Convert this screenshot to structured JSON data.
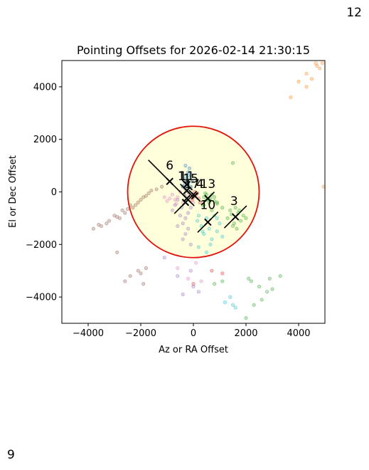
{
  "corner_labels": {
    "top_right": "12",
    "bottom_left": "9"
  },
  "chart_data": {
    "type": "scatter",
    "title": "Pointing Offsets for 2026-02-14 21:30:15",
    "xlabel": "Az or RA Offset",
    "ylabel": "El or Dec Offset",
    "xlim": [
      -5000,
      5000
    ],
    "ylim": [
      -5000,
      5000
    ],
    "xticks": [
      -4000,
      -2000,
      0,
      2000,
      4000
    ],
    "yticks": [
      -4000,
      -2000,
      0,
      2000,
      4000
    ],
    "xtick_labels": [
      "−4000",
      "−2000",
      "0",
      "2000",
      "4000"
    ],
    "ytick_labels": [
      "−4000",
      "−2000",
      "0",
      "2000",
      "4000"
    ],
    "grid": false,
    "background_color": "#ffffff",
    "tolerance_circle": {
      "center": [
        0,
        0
      ],
      "radius": 2500,
      "fill": "#ffffdc",
      "edge": "#e3120b"
    },
    "series": [
      {
        "label": "1",
        "color": "#1f77b4",
        "marker": {
          "x": -250,
          "y": 280,
          "arm": 300,
          "angle": -45
        },
        "text_pos": [
          -450,
          450
        ],
        "points": [
          [
            -300,
            500
          ],
          [
            -200,
            300
          ],
          [
            -100,
            650
          ],
          [
            -350,
            250
          ],
          [
            -150,
            900
          ],
          [
            -400,
            600
          ],
          [
            -250,
            150
          ],
          [
            -50,
            400
          ],
          [
            -200,
            750
          ],
          [
            -350,
            400
          ],
          [
            -100,
            200
          ],
          [
            -300,
            1000
          ],
          [
            -150,
            550
          ],
          [
            -400,
            200
          ],
          [
            -250,
            650
          ]
        ]
      },
      {
        "label": "3",
        "color": "#2ca02c",
        "marker": {
          "x": 1600,
          "y": -950,
          "arm": 600,
          "angle": 45
        },
        "text_pos": [
          1550,
          -500
        ],
        "points": [
          [
            1400,
            -700
          ],
          [
            1800,
            -1100
          ],
          [
            1500,
            -1300
          ],
          [
            1700,
            -800
          ],
          [
            1600,
            -600
          ],
          [
            1900,
            -900
          ],
          [
            1300,
            -1000
          ],
          [
            1550,
            -1200
          ],
          [
            1750,
            -700
          ],
          [
            1450,
            -850
          ],
          [
            2000,
            -1000
          ],
          [
            1650,
            -1400
          ],
          [
            600,
            -300
          ],
          [
            800,
            -200
          ],
          [
            400,
            -500
          ],
          [
            700,
            -700
          ],
          [
            500,
            -100
          ],
          [
            900,
            -400
          ],
          [
            1100,
            -600
          ],
          [
            2100,
            -3300
          ],
          [
            2200,
            -3400
          ],
          [
            2500,
            -3600
          ],
          [
            2800,
            -3800
          ],
          [
            3000,
            -3700
          ],
          [
            3300,
            -3200
          ],
          [
            2600,
            -4100
          ],
          [
            2300,
            -4300
          ],
          [
            2900,
            -3300
          ],
          [
            1100,
            -3400
          ],
          [
            800,
            -3500
          ],
          [
            2000,
            -4800
          ]
        ]
      },
      {
        "label": "4",
        "color": "#d62728",
        "marker": {
          "x": 50,
          "y": -150,
          "arm": 300,
          "angle": -45
        },
        "text_pos": [
          250,
          150
        ],
        "points": [
          [
            0,
            -200
          ],
          [
            100,
            -100
          ],
          [
            -50,
            -300
          ],
          [
            200,
            -250
          ],
          [
            150,
            -50
          ],
          [
            -100,
            -150
          ],
          [
            250,
            -400
          ],
          [
            50,
            0
          ],
          [
            0,
            -3500
          ],
          [
            700,
            -3000
          ],
          [
            1100,
            -3100
          ]
        ]
      },
      {
        "label": "6",
        "color": "#8c564b",
        "marker": {
          "x": -900,
          "y": 400,
          "arm": 1150,
          "angle": -45
        },
        "text_pos": [
          -900,
          850
        ],
        "points": [
          [
            -1600,
            50
          ],
          [
            -1800,
            -150
          ],
          [
            -2100,
            -400
          ],
          [
            -2300,
            -600
          ],
          [
            -2600,
            -800
          ],
          [
            -2800,
            -1000
          ],
          [
            -3200,
            -1100
          ],
          [
            -3500,
            -1300
          ],
          [
            -3800,
            -1400
          ],
          [
            -3000,
            -900
          ],
          [
            -2400,
            -500
          ],
          [
            -1900,
            -200
          ],
          [
            -1400,
            100
          ],
          [
            -1200,
            200
          ],
          [
            -2700,
            -700
          ],
          [
            -2500,
            -650
          ],
          [
            -3300,
            -1200
          ],
          [
            -2000,
            -300
          ],
          [
            -2200,
            -500
          ],
          [
            -1700,
            -50
          ],
          [
            -2900,
            -950
          ],
          [
            -3600,
            -1250
          ],
          [
            -2100,
            -3000
          ],
          [
            -1800,
            -2900
          ],
          [
            -2400,
            -3200
          ],
          [
            -2600,
            -3400
          ],
          [
            -2000,
            -3100
          ],
          [
            -2900,
            -2300
          ],
          [
            -1900,
            -3500
          ]
        ]
      },
      {
        "label": "10",
        "color": "#17becf",
        "marker": {
          "x": 550,
          "y": -1150,
          "arm": 550,
          "angle": 45
        },
        "text_pos": [
          550,
          -650
        ],
        "points": [
          [
            200,
            -900
          ],
          [
            600,
            -1400
          ],
          [
            900,
            -1500
          ],
          [
            300,
            -1300
          ],
          [
            700,
            -1800
          ],
          [
            500,
            -1000
          ],
          [
            1000,
            -1200
          ],
          [
            400,
            -1600
          ],
          [
            800,
            -900
          ],
          [
            150,
            -1100
          ],
          [
            650,
            -2000
          ],
          [
            350,
            -1500
          ],
          [
            1100,
            -1700
          ],
          [
            900,
            -1000
          ],
          [
            500,
            -2300
          ],
          [
            200,
            -2100
          ],
          [
            1400,
            -4000
          ],
          [
            1500,
            -4300
          ],
          [
            1600,
            -4400
          ],
          [
            1200,
            -4200
          ]
        ]
      },
      {
        "label": "11",
        "color": "#7f7f7f",
        "marker": {
          "x": -250,
          "y": 50,
          "arm": 350,
          "angle": -45
        },
        "text_pos": [
          -250,
          450
        ],
        "points": [
          [
            -300,
            100
          ],
          [
            -150,
            -50
          ],
          [
            -400,
            200
          ],
          [
            -200,
            0
          ],
          [
            -350,
            -100
          ],
          [
            -100,
            150
          ]
        ]
      },
      {
        "label": "12",
        "color": "#ff7f0e",
        "marker": null,
        "text_pos": null,
        "points": [
          [
            3700,
            3600
          ],
          [
            4300,
            4000
          ],
          [
            4500,
            4300
          ],
          [
            4700,
            4800
          ],
          [
            4900,
            4900
          ],
          [
            4300,
            4500
          ],
          [
            4000,
            4200
          ],
          [
            4800,
            4700
          ],
          [
            4950,
            200
          ],
          [
            4650,
            4900
          ]
        ]
      },
      {
        "label": "13",
        "color": "#2ca02c",
        "marker": {
          "x": 550,
          "y": -250,
          "arm": 350,
          "angle": 45
        },
        "text_pos": [
          550,
          150
        ],
        "points": [
          [
            400,
            -200
          ],
          [
            600,
            -400
          ],
          [
            700,
            -100
          ],
          [
            500,
            -300
          ],
          [
            800,
            -350
          ],
          [
            350,
            -500
          ],
          [
            650,
            -250
          ],
          [
            450,
            -50
          ],
          [
            900,
            -450
          ],
          [
            1500,
            1100
          ]
        ]
      },
      {
        "label": "15",
        "color": "#9467bd",
        "marker": {
          "x": -300,
          "y": -400,
          "arm": 600,
          "angle": 45
        },
        "text_pos": [
          -100,
          350
        ],
        "points": [
          [
            -450,
            -600
          ],
          [
            -200,
            -800
          ],
          [
            -600,
            -300
          ],
          [
            -300,
            -1000
          ],
          [
            -500,
            -900
          ],
          [
            -100,
            -600
          ],
          [
            -700,
            -500
          ],
          [
            -400,
            -1200
          ],
          [
            -200,
            -1400
          ],
          [
            -600,
            -1300
          ],
          [
            -300,
            -1600
          ],
          [
            -800,
            -700
          ],
          [
            -400,
            -1800
          ],
          [
            -100,
            -2000
          ],
          [
            -1100,
            -2500
          ],
          [
            -600,
            -3200
          ],
          [
            -100,
            -3000
          ],
          [
            0,
            -3600
          ],
          [
            -400,
            -3900
          ],
          [
            200,
            -3800
          ]
        ]
      },
      {
        "label": "17",
        "color": "#e377c2",
        "marker": {
          "x": -250,
          "y": -250,
          "arm": 400,
          "angle": -45
        },
        "text_pos": [
          -50,
          150
        ],
        "points": [
          [
            -600,
            -200
          ],
          [
            -800,
            -100
          ],
          [
            -400,
            -400
          ],
          [
            -700,
            -300
          ],
          [
            -500,
            0
          ],
          [
            -900,
            -250
          ],
          [
            -300,
            -150
          ],
          [
            -650,
            -450
          ],
          [
            -1100,
            -200
          ],
          [
            -1000,
            -350
          ],
          [
            0,
            -400
          ],
          [
            -200,
            -3300
          ],
          [
            300,
            -3400
          ],
          [
            -600,
            -2900
          ],
          [
            100,
            -2700
          ]
        ]
      }
    ]
  }
}
